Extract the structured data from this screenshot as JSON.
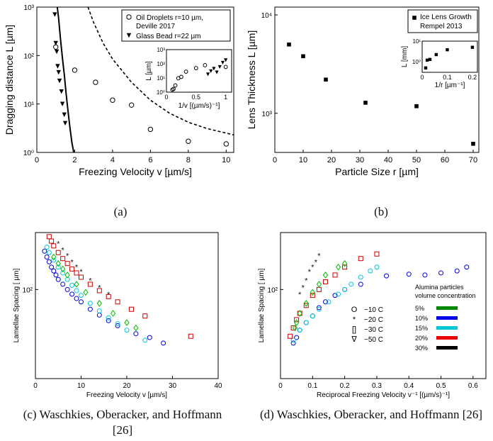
{
  "captions": {
    "a": "(a)",
    "b": "(b)",
    "c": "(c) Waschkies, Oberacker, and Hoffmann [26]",
    "d": "(d) Waschkies, Oberacker, and Hoffmann [26]"
  },
  "chart_data": [
    {
      "id": "a",
      "type": "scatter",
      "xlabel": "Freezing Velocity v [µm/s]",
      "ylabel": "Dragging distance L [µm]",
      "xlim": [
        0,
        10.4
      ],
      "ylim": [
        1,
        1000
      ],
      "yscale": "log",
      "xticks": [
        0,
        2,
        4,
        6,
        8,
        10
      ],
      "yticks": [
        1,
        10,
        100,
        1000
      ],
      "ytick_labels": [
        "10⁰",
        "10¹",
        "10²",
        "10³"
      ],
      "legend_position": "top-right",
      "series": [
        {
          "name": "Oil Droplets r=10 µm, Deville 2017",
          "marker": "open-circle",
          "x": [
            1.0,
            2.0,
            3.1,
            4.0,
            5.0,
            6.0,
            8.0,
            10.0
          ],
          "y": [
            150,
            50,
            28,
            12,
            9.5,
            3.0,
            1.7,
            1.5
          ]
        },
        {
          "name": "Glass Bead r=22 µm",
          "marker": "filled-triangle-down",
          "x": [
            0.95,
            1.0,
            1.05,
            1.1,
            1.15,
            1.2,
            1.3,
            1.35,
            1.45,
            1.5
          ],
          "y": [
            700,
            180,
            120,
            60,
            45,
            30,
            18,
            10,
            6,
            4
          ]
        }
      ],
      "curves": [
        {
          "style": "solid",
          "x": [
            1.08,
            1.15,
            1.25,
            1.35,
            1.45,
            1.55,
            1.65,
            1.75,
            1.85,
            1.95
          ],
          "y": [
            1000,
            600,
            220,
            90,
            40,
            16,
            7,
            3.2,
            1.6,
            1.0
          ]
        },
        {
          "style": "dashed",
          "x": [
            2.7,
            3.0,
            3.5,
            4.0,
            5.0,
            6.0,
            7.0,
            8.0,
            9.0,
            10.4
          ],
          "y": [
            1000,
            480,
            180,
            85,
            28,
            12,
            6.5,
            4.2,
            3.1,
            2.3
          ]
        }
      ],
      "inset": {
        "xlabel": "1/v [(µm/s)⁻¹]",
        "ylabel": "L [µm]",
        "xlim": [
          0,
          1.1
        ],
        "ylim": [
          1,
          1000
        ],
        "xticks": [
          0,
          0.5,
          1
        ],
        "xtick_labels": [
          "0",
          "0.5",
          "1"
        ],
        "yticks": [
          1,
          10,
          100,
          1000
        ],
        "ytick_labels": [
          "10⁰",
          "10¹",
          "10²",
          "10³"
        ],
        "open_x": [
          0.1,
          0.12,
          0.15,
          0.2,
          0.25,
          0.33,
          0.5,
          0.65,
          1.0
        ],
        "open_y": [
          1.5,
          1.7,
          3,
          9.5,
          12,
          28,
          50,
          80,
          60
        ],
        "filled_x": [
          0.7,
          0.75,
          0.8,
          0.85,
          0.9,
          0.95,
          1.0
        ],
        "filled_y": [
          18,
          30,
          45,
          25,
          60,
          120,
          180
        ]
      }
    },
    {
      "id": "b",
      "type": "scatter",
      "xlabel": "Particle Size r [µm]",
      "ylabel": "Lens Thickness L [µm]",
      "xlim": [
        0,
        72
      ],
      "ylim": [
        400,
        12000
      ],
      "yscale": "log",
      "xticks": [
        0,
        10,
        20,
        30,
        40,
        50,
        60,
        70
      ],
      "yticks": [
        1000,
        10000
      ],
      "ytick_labels": [
        "10³",
        "10⁴"
      ],
      "legend_position": "top-right",
      "series": [
        {
          "name": "Ice Lens Growth Rempel 2013",
          "marker": "filled-square",
          "x": [
            5,
            10,
            18,
            32,
            50,
            70
          ],
          "y": [
            5000,
            3800,
            2200,
            1280,
            1180,
            490
          ]
        }
      ],
      "inset": {
        "xlabel": "1/r [µm⁻¹]",
        "ylabel": "L [mm]",
        "xlim": [
          0,
          0.22
        ],
        "ylim": [
          0.3,
          10
        ],
        "xticks": [
          0,
          0.1,
          0.2
        ],
        "xtick_labels": [
          "0",
          "0.1",
          "0.2"
        ],
        "yticks": [
          1,
          10
        ],
        "ytick_labels": [
          "10⁰",
          "10¹"
        ],
        "x": [
          0.014,
          0.02,
          0.031,
          0.056,
          0.1,
          0.2
        ],
        "y": [
          0.49,
          1.18,
          1.28,
          2.2,
          3.8,
          5.0
        ]
      }
    },
    {
      "id": "c",
      "type": "scatter",
      "xlabel": "Freezing Velocity v [µm/s]",
      "ylabel": "Lamellae Spacing [ µm]",
      "xlim": [
        0,
        40
      ],
      "ylim": [
        20,
        280
      ],
      "yscale": "log",
      "xticks": [
        0,
        10,
        20,
        30,
        40
      ],
      "yticks": [
        100
      ],
      "ytick_labels": [
        "10²"
      ],
      "series": [
        {
          "color": "#0000dd",
          "marker": "circle",
          "x": [
            2,
            2.5,
            3,
            3.5,
            4,
            4.5,
            5,
            6,
            7,
            8,
            9,
            10,
            12,
            14,
            16,
            18,
            22,
            25,
            28
          ],
          "y": [
            200,
            180,
            165,
            150,
            140,
            130,
            120,
            110,
            100,
            92,
            85,
            80,
            70,
            63,
            57,
            52,
            45,
            42,
            38
          ]
        },
        {
          "color": "#00c8d8",
          "marker": "circle",
          "x": [
            2.5,
            3,
            4,
            5,
            6,
            7,
            8,
            9,
            10,
            12,
            14,
            16,
            18,
            20,
            24
          ],
          "y": [
            215,
            195,
            170,
            150,
            135,
            120,
            108,
            98,
            90,
            78,
            68,
            60,
            54,
            48,
            40
          ]
        },
        {
          "color": "#cc0000",
          "marker": "square",
          "x": [
            3,
            3.5,
            4,
            5,
            6,
            7,
            8,
            9,
            10,
            12,
            14,
            16,
            18,
            21,
            24,
            34
          ],
          "y": [
            260,
            240,
            220,
            195,
            175,
            160,
            145,
            135,
            125,
            110,
            98,
            88,
            80,
            70,
            62,
            43
          ]
        },
        {
          "color": "#111111",
          "marker": "star",
          "x": [
            5,
            6,
            7,
            8,
            9,
            10,
            12,
            14,
            16
          ],
          "y": [
            230,
            205,
            185,
            165,
            150,
            138,
            118,
            104,
            92
          ]
        },
        {
          "color": "#00bb00",
          "marker": "diamond",
          "x": [
            4,
            5,
            6,
            7,
            9,
            11,
            14,
            17,
            20,
            22
          ],
          "y": [
            180,
            160,
            145,
            130,
            110,
            95,
            78,
            65,
            55,
            50
          ]
        }
      ]
    },
    {
      "id": "d",
      "type": "scatter",
      "xlabel": "Reciprocal Freezing Velocity v⁻¹ [(µm/s)⁻¹]",
      "ylabel": "Lamellae Spacing [ µm]",
      "xlim": [
        0,
        0.64
      ],
      "ylim": [
        20,
        280
      ],
      "yscale": "log",
      "xticks": [
        0,
        0.1,
        0.2,
        0.3,
        0.4,
        0.5,
        0.6
      ],
      "xtick_labels": [
        "0",
        "0.1",
        "0.2",
        "0.3",
        "0.4",
        "0.5",
        "0.6"
      ],
      "yticks": [
        100
      ],
      "ytick_labels": [
        "10²"
      ],
      "legend_markers": [
        {
          "symbol": "O",
          "label": "−10 C"
        },
        {
          "symbol": "*",
          "label": "−20 C"
        },
        {
          "symbol": "[]",
          "label": "−30 C"
        },
        {
          "symbol": "∇",
          "label": "−50 C"
        }
      ],
      "legend_colors": {
        "title": "Alumina particles volume concentration",
        "items": [
          {
            "label": "5%",
            "color": "#008800"
          },
          {
            "label": "10%",
            "color": "#0000ee"
          },
          {
            "label": "15%",
            "color": "#00c8d8"
          },
          {
            "label": "20%",
            "color": "#ee0000"
          },
          {
            "label": "30%",
            "color": "#000000"
          }
        ]
      },
      "series": [
        {
          "color": "#0000dd",
          "marker": "circle",
          "x": [
            0.04,
            0.05,
            0.06,
            0.08,
            0.1,
            0.12,
            0.14,
            0.17,
            0.2,
            0.25,
            0.33,
            0.4,
            0.45,
            0.5,
            0.55,
            0.58
          ],
          "y": [
            38,
            42,
            48,
            55,
            62,
            72,
            80,
            90,
            100,
            110,
            128,
            132,
            130,
            135,
            140,
            150
          ]
        },
        {
          "color": "#00c8d8",
          "marker": "circle",
          "x": [
            0.04,
            0.06,
            0.08,
            0.1,
            0.12,
            0.15,
            0.18,
            0.2,
            0.22,
            0.25,
            0.28,
            0.3
          ],
          "y": [
            40,
            48,
            55,
            62,
            70,
            80,
            92,
            100,
            110,
            125,
            140,
            150
          ]
        },
        {
          "color": "#cc0000",
          "marker": "square",
          "x": [
            0.03,
            0.04,
            0.05,
            0.06,
            0.08,
            0.1,
            0.12,
            0.14,
            0.17,
            0.2,
            0.25,
            0.3
          ],
          "y": [
            43,
            50,
            58,
            65,
            75,
            90,
            100,
            115,
            130,
            150,
            175,
            190
          ]
        },
        {
          "color": "#111111",
          "marker": "star",
          "x": [
            0.06,
            0.07,
            0.08,
            0.09,
            0.1,
            0.11,
            0.12
          ],
          "y": [
            92,
            104,
            118,
            138,
            150,
            165,
            185
          ]
        },
        {
          "color": "#00bb00",
          "marker": "diamond",
          "x": [
            0.045,
            0.05,
            0.06,
            0.08,
            0.1,
            0.12,
            0.14,
            0.18,
            0.2
          ],
          "y": [
            50,
            55,
            65,
            78,
            95,
            110,
            130,
            150,
            160
          ]
        }
      ]
    }
  ]
}
